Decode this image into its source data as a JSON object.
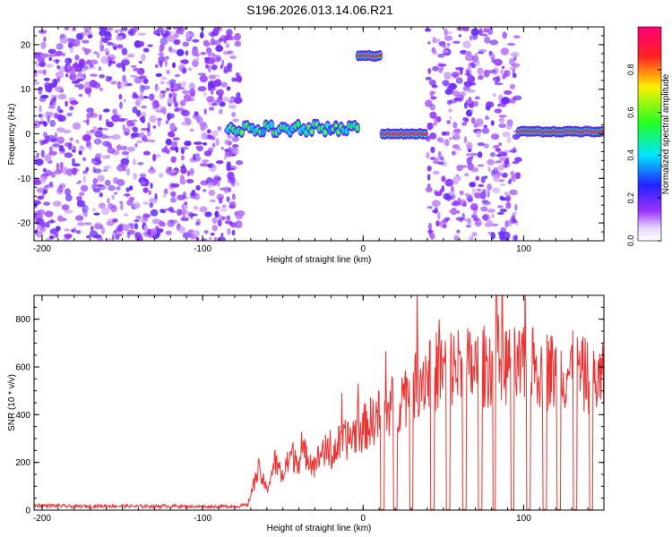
{
  "title": "S196.2026.013.14.06.R21",
  "chart_data": [
    {
      "type": "heatmap",
      "xlabel": "Height of straight line (km)",
      "ylabel": "Frequency (Hz)",
      "xlim": [
        -205,
        150
      ],
      "ylim": [
        -24,
        24
      ],
      "xticks": [
        -200,
        -100,
        0,
        100
      ],
      "yticks": [
        -20,
        -10,
        0,
        10,
        20
      ],
      "xtick_labels": [
        "-200",
        "-100",
        "0",
        "100"
      ],
      "ytick_labels": [
        "-20",
        "-10",
        "0",
        "10",
        "20"
      ],
      "noise_regions": [
        {
          "x": [
            -205,
            -76
          ],
          "density": 0.55
        },
        {
          "x": [
            40,
            97
          ],
          "density": 0.5
        }
      ],
      "signal_segments": [
        {
          "x": [
            -84,
            -3
          ],
          "freq": 1.2,
          "amplitude": 0.35
        },
        {
          "x": [
            -3,
            12
          ],
          "freq": 17.5,
          "amplitude": 0.95
        },
        {
          "x": [
            12,
            40
          ],
          "freq": 0,
          "amplitude": 0.9
        },
        {
          "x": [
            97,
            150
          ],
          "freq": 0.5,
          "amplitude": 0.9
        }
      ],
      "colorbar": {
        "label": "Normalized spectral amplitude",
        "range": [
          0,
          1
        ],
        "ticks": [
          0.0,
          0.2,
          0.4,
          0.6,
          0.8
        ],
        "tick_labels": [
          "0.0",
          "0.2",
          "0.4",
          "0.6",
          "0.8"
        ]
      }
    },
    {
      "type": "line",
      "xlabel": "Height of straight line (km)",
      "ylabel": "SNR (10 * v/v)",
      "xlim": [
        -205,
        150
      ],
      "ylim": [
        0,
        900
      ],
      "xticks": [
        -200,
        -100,
        0,
        100
      ],
      "yticks": [
        0,
        200,
        400,
        600,
        800
      ],
      "xtick_labels": [
        "-200",
        "-100",
        "0",
        "100"
      ],
      "ytick_labels": [
        "0",
        "200",
        "400",
        "600",
        "800"
      ],
      "color": "#ee3333",
      "series": [
        {
          "name": "SNR",
          "x": [
            -205,
            -190,
            -180,
            -160,
            -140,
            -120,
            -100,
            -80,
            -72,
            -68,
            -65,
            -60,
            -55,
            -50,
            -45,
            -40,
            -35,
            -30,
            -25,
            -20,
            -15,
            -10,
            -5,
            0,
            5,
            10,
            15,
            20,
            25,
            30,
            35,
            40,
            50,
            60,
            70,
            80,
            85,
            90,
            100,
            110,
            120,
            130,
            140,
            150
          ],
          "values": [
            20,
            18,
            15,
            18,
            16,
            17,
            15,
            16,
            20,
            120,
            180,
            90,
            220,
            150,
            250,
            230,
            260,
            200,
            280,
            240,
            300,
            320,
            350,
            370,
            400,
            430,
            460,
            480,
            520,
            560,
            600,
            620,
            640,
            650,
            640,
            660,
            700,
            650,
            640,
            650,
            620,
            630,
            600,
            580
          ]
        }
      ],
      "dropouts_x": [
        12,
        20,
        30,
        43,
        53,
        63,
        73,
        82,
        93,
        103,
        113,
        122,
        132,
        142
      ],
      "spike": {
        "x": 83,
        "y": 900
      }
    }
  ]
}
